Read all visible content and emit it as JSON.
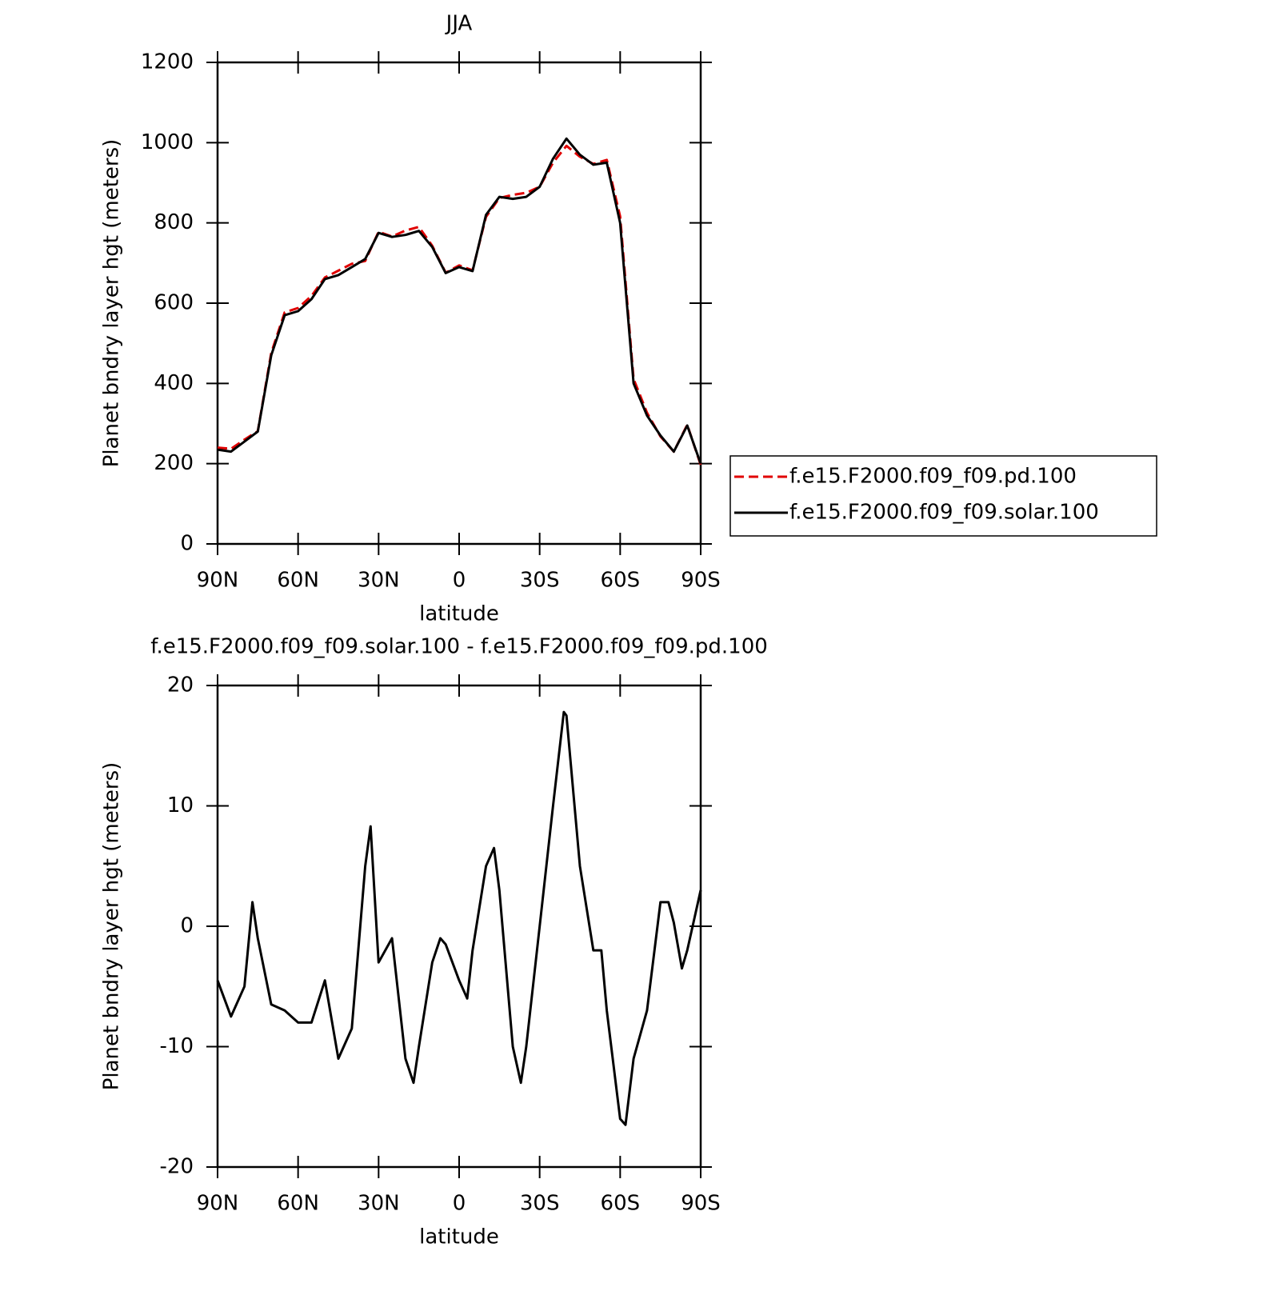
{
  "chart_data": [
    {
      "type": "line",
      "title": "JJA",
      "xlabel": "latitude",
      "ylabel": "Planet bndry layer hgt (meters)",
      "x": [
        90,
        85,
        80,
        75,
        70,
        65,
        60,
        55,
        50,
        45,
        40,
        35,
        30,
        25,
        20,
        15,
        10,
        5,
        0,
        -5,
        -10,
        -15,
        -20,
        -25,
        -30,
        -35,
        -40,
        -45,
        -50,
        -55,
        -60,
        -65,
        -70,
        -75,
        -80,
        -85,
        -90
      ],
      "series": [
        {
          "name": "f.e15.F2000.f09_f09.pd.100",
          "color": "#e00000",
          "linestyle": "dashed",
          "values": [
            240,
            237,
            260,
            281,
            476,
            577,
            588,
            618,
            664,
            681,
            698,
            705,
            778,
            766,
            781,
            790,
            743,
            676,
            694,
            682,
            815,
            862,
            870,
            875,
            890,
            950,
            992,
            965,
            947,
            957,
            816,
            411,
            327,
            268,
            230,
            297,
            197
          ]
        },
        {
          "name": "f.e15.F2000.f09_f09.solar.100",
          "color": "#000000",
          "linestyle": "solid",
          "values": [
            235,
            230,
            255,
            280,
            470,
            570,
            580,
            610,
            660,
            670,
            690,
            710,
            775,
            765,
            770,
            780,
            740,
            675,
            690,
            680,
            820,
            865,
            860,
            865,
            890,
            960,
            1010,
            970,
            945,
            950,
            800,
            400,
            320,
            270,
            230,
            295,
            200
          ]
        }
      ],
      "xlim": [
        90,
        -90
      ],
      "xticks": [
        {
          "value": 90,
          "label": "90N"
        },
        {
          "value": 60,
          "label": "60N"
        },
        {
          "value": 30,
          "label": "30N"
        },
        0,
        {
          "value": -30,
          "label": "30S"
        },
        {
          "value": -60,
          "label": "60S"
        },
        {
          "value": -90,
          "label": "90S"
        }
      ],
      "ylim": [
        0,
        1200
      ],
      "yticks": [
        0,
        200,
        400,
        600,
        800,
        1000,
        1200
      ],
      "legend": "right"
    },
    {
      "type": "line",
      "title": "f.e15.F2000.f09_f09.solar.100 - f.e15.F2000.f09_f09.pd.100",
      "xlabel": "latitude",
      "ylabel": "Planet bndry layer hgt (meters)",
      "x": [
        90,
        85,
        80,
        77,
        75,
        70,
        65,
        60,
        55,
        50,
        45,
        40,
        35,
        33,
        30,
        25,
        20,
        17,
        15,
        10,
        7,
        5,
        0,
        -3,
        -5,
        -10,
        -13,
        -15,
        -20,
        -23,
        -25,
        -30,
        -35,
        -39,
        -40,
        -45,
        -50,
        -53,
        -55,
        -60,
        -62,
        -65,
        -70,
        -75,
        -78,
        -80,
        -83,
        -85,
        -90
      ],
      "series": [
        {
          "color": "#000000",
          "linestyle": "solid",
          "values": [
            -4.5,
            -7.5,
            -5,
            2,
            -1,
            -6.5,
            -7,
            -8,
            -8,
            -4.5,
            -11,
            -8.5,
            5,
            8.3,
            -3,
            -1,
            -11,
            -13,
            -10,
            -3,
            -1,
            -1.5,
            -4.5,
            -6,
            -2,
            5,
            6.5,
            3,
            -10,
            -13,
            -10,
            0,
            10,
            17.8,
            17.5,
            5,
            -2,
            -2,
            -7,
            -16,
            -16.5,
            -11,
            -7,
            2,
            2,
            0.3,
            -3.5,
            -2,
            3
          ]
        }
      ],
      "xlim": [
        90,
        -90
      ],
      "xticks": [
        {
          "value": 90,
          "label": "90N"
        },
        {
          "value": 60,
          "label": "60N"
        },
        {
          "value": 30,
          "label": "30N"
        },
        0,
        {
          "value": -30,
          "label": "30S"
        },
        {
          "value": -60,
          "label": "60S"
        },
        {
          "value": -90,
          "label": "90S"
        }
      ],
      "ylim": [
        -20,
        20
      ],
      "yticks": [
        -20,
        -10,
        0,
        10,
        20
      ]
    }
  ]
}
